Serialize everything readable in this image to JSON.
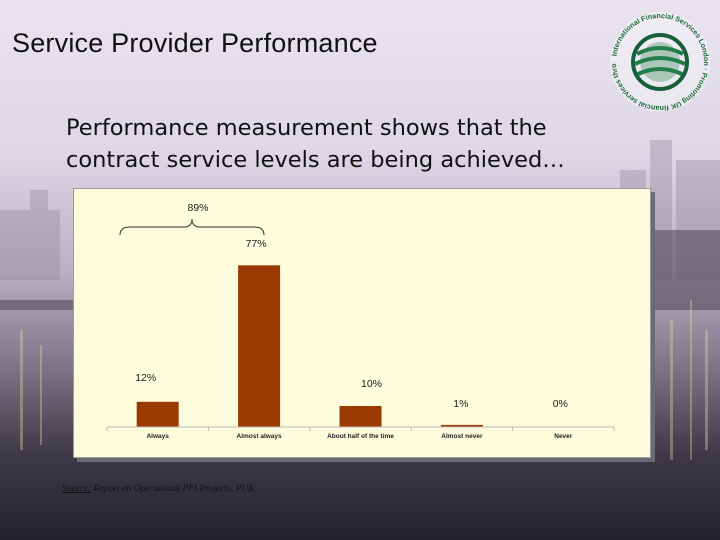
{
  "slide": {
    "title": "Service Provider Performance",
    "subtitle": "Performance measurement shows that the contract service levels are being achieved…"
  },
  "logo": {
    "icon": "globe-icon",
    "ring_text": "International Financial Services London · Promoting UK financial services throughout the world"
  },
  "source": {
    "label": "Source:",
    "text": " Report on Operational PFI Projects, PUK"
  },
  "colors": {
    "bar": "#9b3a00",
    "chart_bg": "#fcfbdc"
  },
  "chart_data": {
    "type": "bar",
    "categories": [
      "Always",
      "Almost always",
      "About half of the time",
      "Almost never",
      "Never"
    ],
    "values": [
      12,
      77,
      10,
      1,
      0
    ],
    "data_labels": [
      "12%",
      "77%",
      "10%",
      "1%",
      "0%"
    ],
    "ylim": [
      0,
      100
    ],
    "grid": false,
    "bracket": {
      "label": "89%",
      "spans": [
        "Always",
        "Almost always"
      ]
    }
  }
}
